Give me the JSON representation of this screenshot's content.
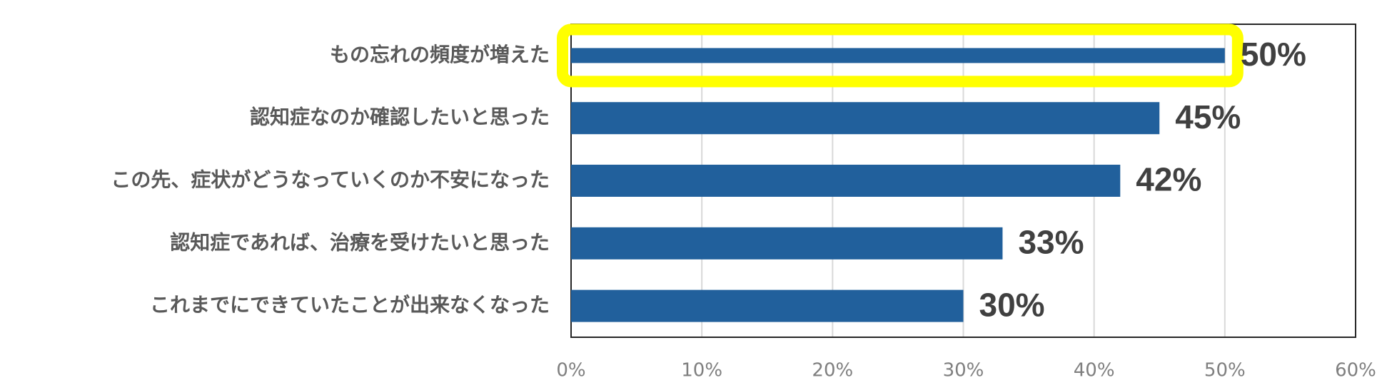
{
  "chart_data": {
    "type": "barh",
    "categories": [
      "もの忘れの頻度が増えた",
      "認知症なのか確認したいと思った",
      "この先、症状がどうなっていくのか不安になった",
      "認知症であれば、治療を受けたいと思った",
      "これまでにできていたことが出来なくなった"
    ],
    "values": [
      50,
      45,
      42,
      33,
      30
    ],
    "value_labels": [
      "50%",
      "45%",
      "42%",
      "33%",
      "30%"
    ],
    "color": "#21609c",
    "highlight": 0,
    "highlight_color": "#ffff00",
    "xlim": [
      0,
      60
    ],
    "xticks": [
      {
        "value": 0,
        "label": "0%"
      },
      {
        "value": 10,
        "label": "10%"
      },
      {
        "value": 20,
        "label": "20%"
      },
      {
        "value": 30,
        "label": "30%"
      },
      {
        "value": 40,
        "label": "40%"
      },
      {
        "value": 50,
        "label": "50%"
      },
      {
        "value": 60,
        "label": "60%"
      }
    ],
    "grid": true
  }
}
